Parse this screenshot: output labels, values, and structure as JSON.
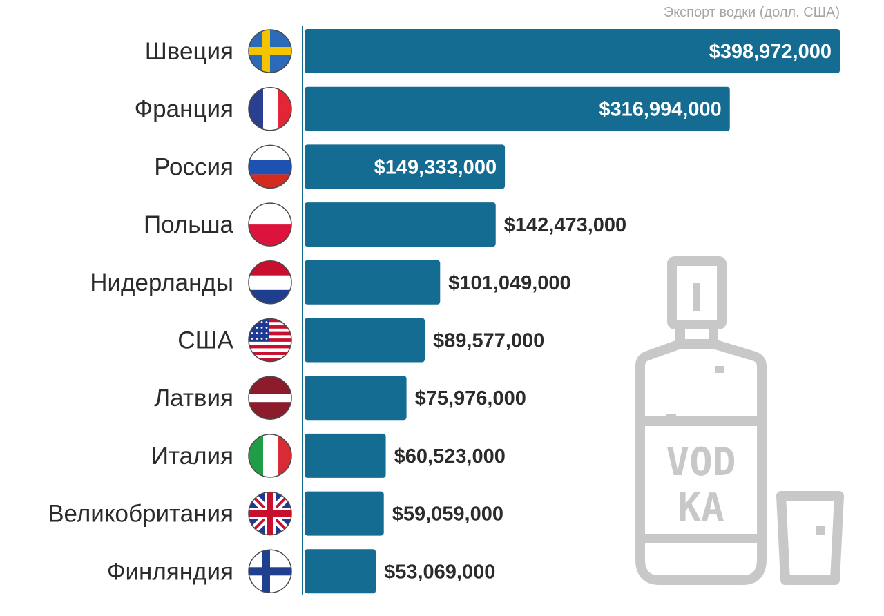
{
  "chart_data": {
    "type": "bar",
    "orientation": "horizontal",
    "title": "Экспорт водки (долл. США)",
    "xlabel": "",
    "ylabel": "",
    "xlim": [
      0,
      398972000
    ],
    "grid": false,
    "categories": [
      "Швеция",
      "Франция",
      "Россия",
      "Польша",
      "Нидерланды",
      "США",
      "Латвия",
      "Италия",
      "Великобритания",
      "Финляндия"
    ],
    "values": [
      398972000,
      316994000,
      149333000,
      142473000,
      101049000,
      89577000,
      75976000,
      60523000,
      59059000,
      53069000
    ],
    "value_labels": [
      "$398,972,000",
      "$316,994,000",
      "$149,333,000",
      "$142,473,000",
      "$101,049,000",
      "$89,577,000",
      "$75,976,000",
      "$60,523,000",
      "$59,059,000",
      "$53,069,000"
    ],
    "flags": [
      "sweden-flag",
      "france-flag",
      "russia-flag",
      "poland-flag",
      "netherlands-flag",
      "usa-flag",
      "latvia-flag",
      "italy-flag",
      "uk-flag",
      "finland-flag"
    ],
    "colors": {
      "bar": "#146c93",
      "label_inside": "#ffffff",
      "label_outside": "#2b2b2b"
    }
  },
  "illustration": {
    "icon": "vodka-bottle-icon",
    "text_line1": "VOD",
    "text_line2": "KA",
    "glass_icon": "shot-glass-icon"
  }
}
